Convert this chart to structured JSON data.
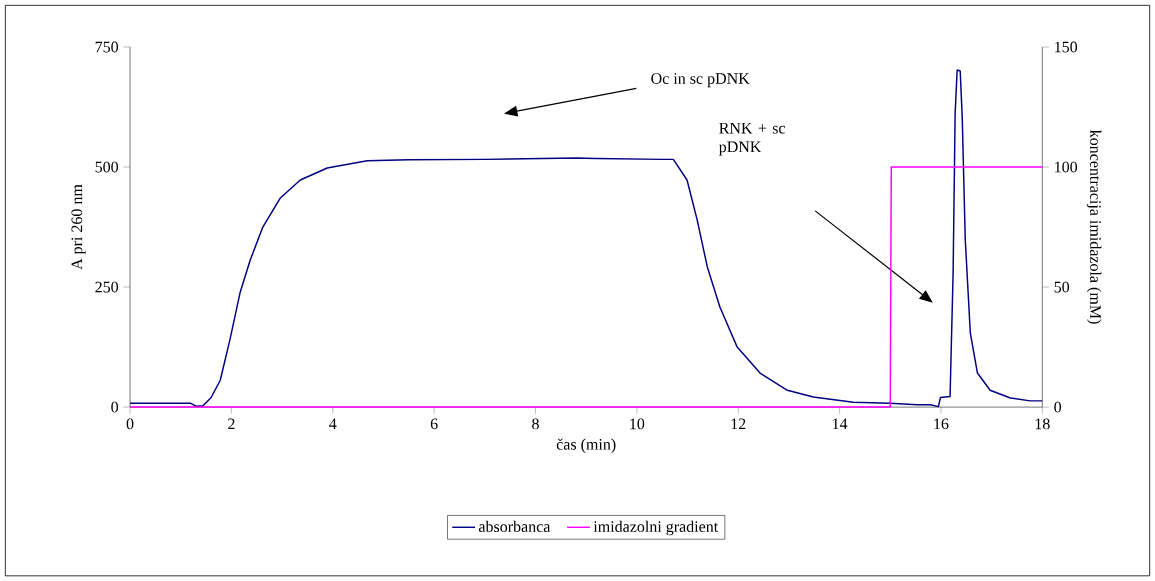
{
  "chart_data": {
    "type": "line",
    "xlabel": "čas (min)",
    "ylabel": "A pri 260 nm",
    "y2label": "koncentracija imidazola (mM)",
    "xlim": [
      0,
      18
    ],
    "xticks": [
      0,
      2,
      4,
      6,
      8,
      10,
      12,
      14,
      16,
      18
    ],
    "ylim": [
      0,
      750
    ],
    "yticks": [
      0,
      250,
      500,
      750
    ],
    "y2lim": [
      0,
      150
    ],
    "y2ticks": [
      0,
      50,
      100,
      150
    ],
    "grid": false,
    "legend": "bottom",
    "marker": "none",
    "line_style": "solid",
    "annotations": [
      "Oc in sc pDNK",
      "RNK + sc pDNK"
    ],
    "series": [
      {
        "name": "absorbanca",
        "color": "#000080",
        "x": [
          0,
          1.2,
          1.3,
          1.44,
          1.6,
          1.78,
          1.97,
          2.17,
          2.37,
          2.62,
          2.96,
          3.36,
          3.89,
          4.68,
          5.5,
          7,
          8.8,
          9.2,
          10.5,
          10.72,
          10.99,
          11.19,
          11.39,
          11.64,
          11.98,
          12.43,
          12.97,
          13.48,
          14.27,
          15.0,
          15.53,
          15.79,
          15.95,
          15.99,
          16.18,
          16.24,
          16.28,
          16.32,
          16.38,
          16.42,
          16.48,
          16.58,
          16.72,
          16.97,
          17.37,
          17.76,
          18
        ],
        "values": [
          8,
          8,
          2,
          3,
          20,
          56,
          140,
          238,
          306,
          375,
          435,
          473,
          498,
          513,
          515,
          516,
          519,
          518,
          516,
          516,
          473,
          390,
          292,
          208,
          125,
          71,
          35,
          21,
          10,
          8,
          5,
          5,
          1,
          20,
          22,
          279,
          612,
          702,
          700,
          604,
          348,
          154,
          71,
          35,
          19,
          13,
          13
        ]
      },
      {
        "name": "imidazolni gradient",
        "color": "#ff00ff",
        "axis": "y2",
        "x": [
          0,
          15,
          15.02,
          18
        ],
        "values": [
          0,
          0,
          100,
          100
        ]
      }
    ]
  }
}
